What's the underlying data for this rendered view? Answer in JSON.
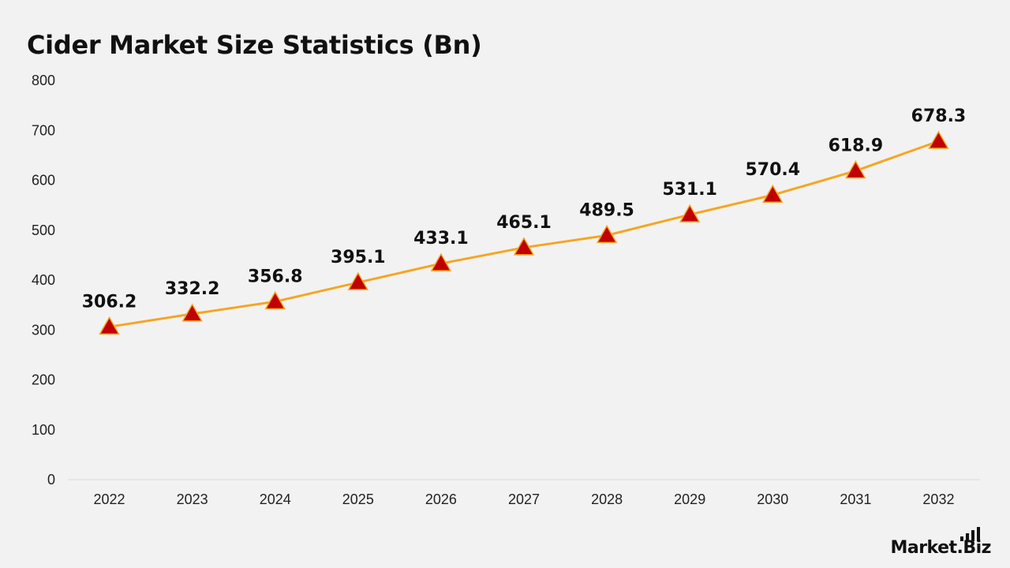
{
  "chart_data": {
    "type": "line",
    "title": "Cider Market Size Statistics (Bn)",
    "xlabel": "",
    "ylabel": "",
    "categories": [
      "2022",
      "2023",
      "2024",
      "2025",
      "2026",
      "2027",
      "2028",
      "2029",
      "2030",
      "2031",
      "2032"
    ],
    "values": [
      306.2,
      332.2,
      356.8,
      395.1,
      433.1,
      465.1,
      489.5,
      531.1,
      570.4,
      618.9,
      678.3
    ],
    "data_labels": [
      "306.2",
      "332.2",
      "356.8",
      "395.1",
      "433.1",
      "465.1",
      "489.5",
      "531.1",
      "570.4",
      "618.9",
      "678.3"
    ],
    "ylim": [
      0,
      800
    ],
    "yticks": [
      "0",
      "100",
      "200",
      "300",
      "400",
      "500",
      "600",
      "700",
      "800"
    ],
    "grid": false,
    "legend": "none",
    "marker": "triangle",
    "line_color": "#f5a623",
    "marker_color": "#c00000",
    "marker_edge_color": "#f5a623"
  },
  "brand": {
    "logo_text": "Market.Biz"
  }
}
